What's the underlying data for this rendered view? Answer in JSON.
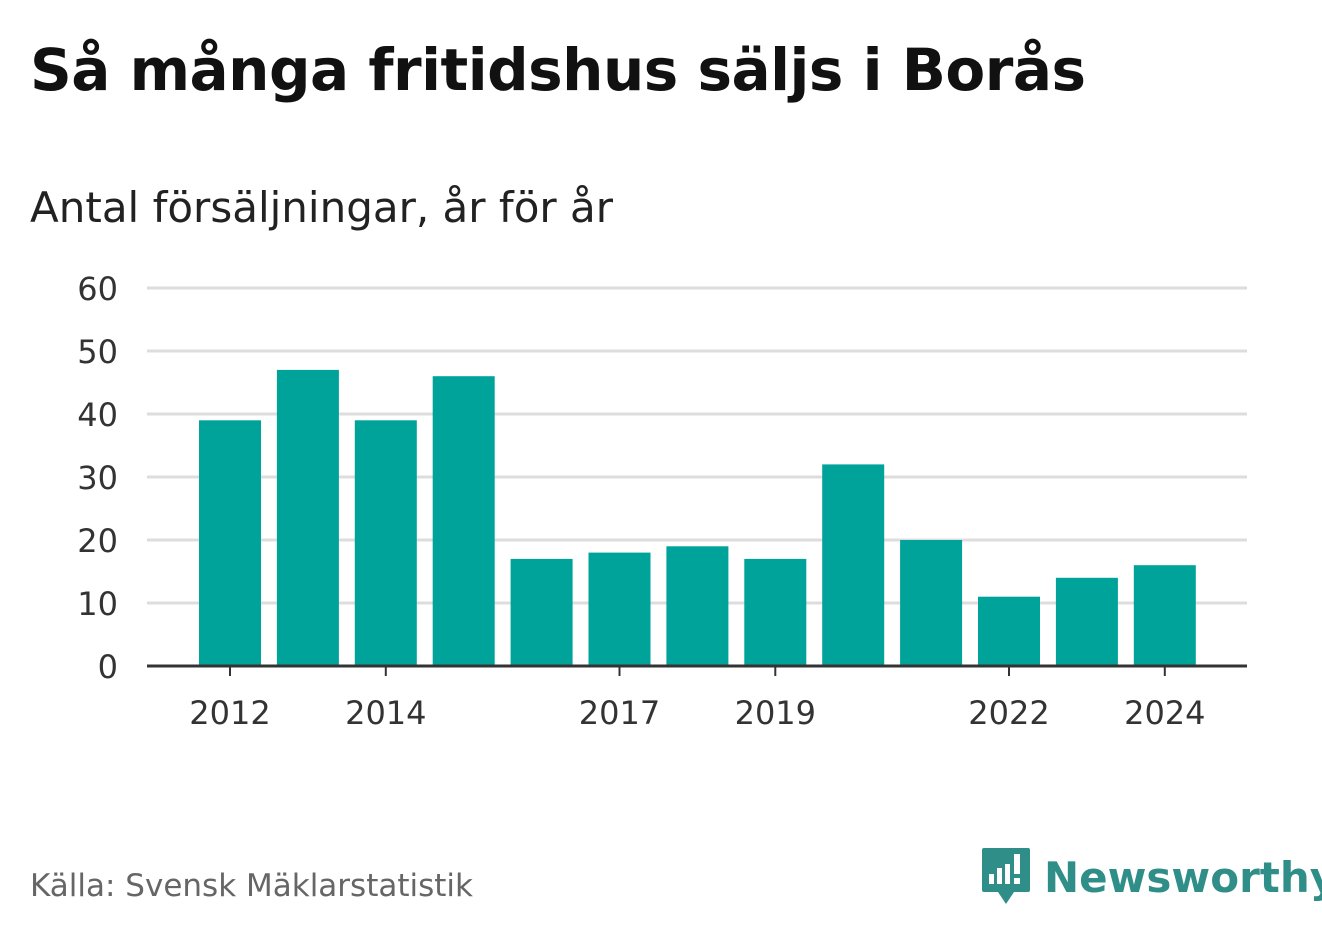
{
  "header": {
    "title": "Så många fritidshus säljs i Borås",
    "subtitle": "Antal försäljningar, år för år"
  },
  "footer": {
    "source": "Källa: Svensk Mäklarstatistik",
    "brand": "Newsworthy"
  },
  "colors": {
    "bar": "#00a39a",
    "grid": "#dddddd",
    "axis": "#333333",
    "brand": "#2f8f88"
  },
  "chart_data": {
    "type": "bar",
    "categories": [
      "2012",
      "2013",
      "2014",
      "2015",
      "2016",
      "2017",
      "2018",
      "2019",
      "2020",
      "2021",
      "2022",
      "2023",
      "2024"
    ],
    "values": [
      39,
      47,
      39,
      46,
      17,
      18,
      19,
      17,
      32,
      20,
      11,
      14,
      16
    ],
    "x_tick_labels": [
      "2012",
      "2014",
      "2017",
      "2019",
      "2022",
      "2024"
    ],
    "y_ticks": [
      0,
      10,
      20,
      30,
      40,
      50,
      60
    ],
    "ylim": [
      0,
      60
    ],
    "grid": true,
    "legend": "none"
  }
}
